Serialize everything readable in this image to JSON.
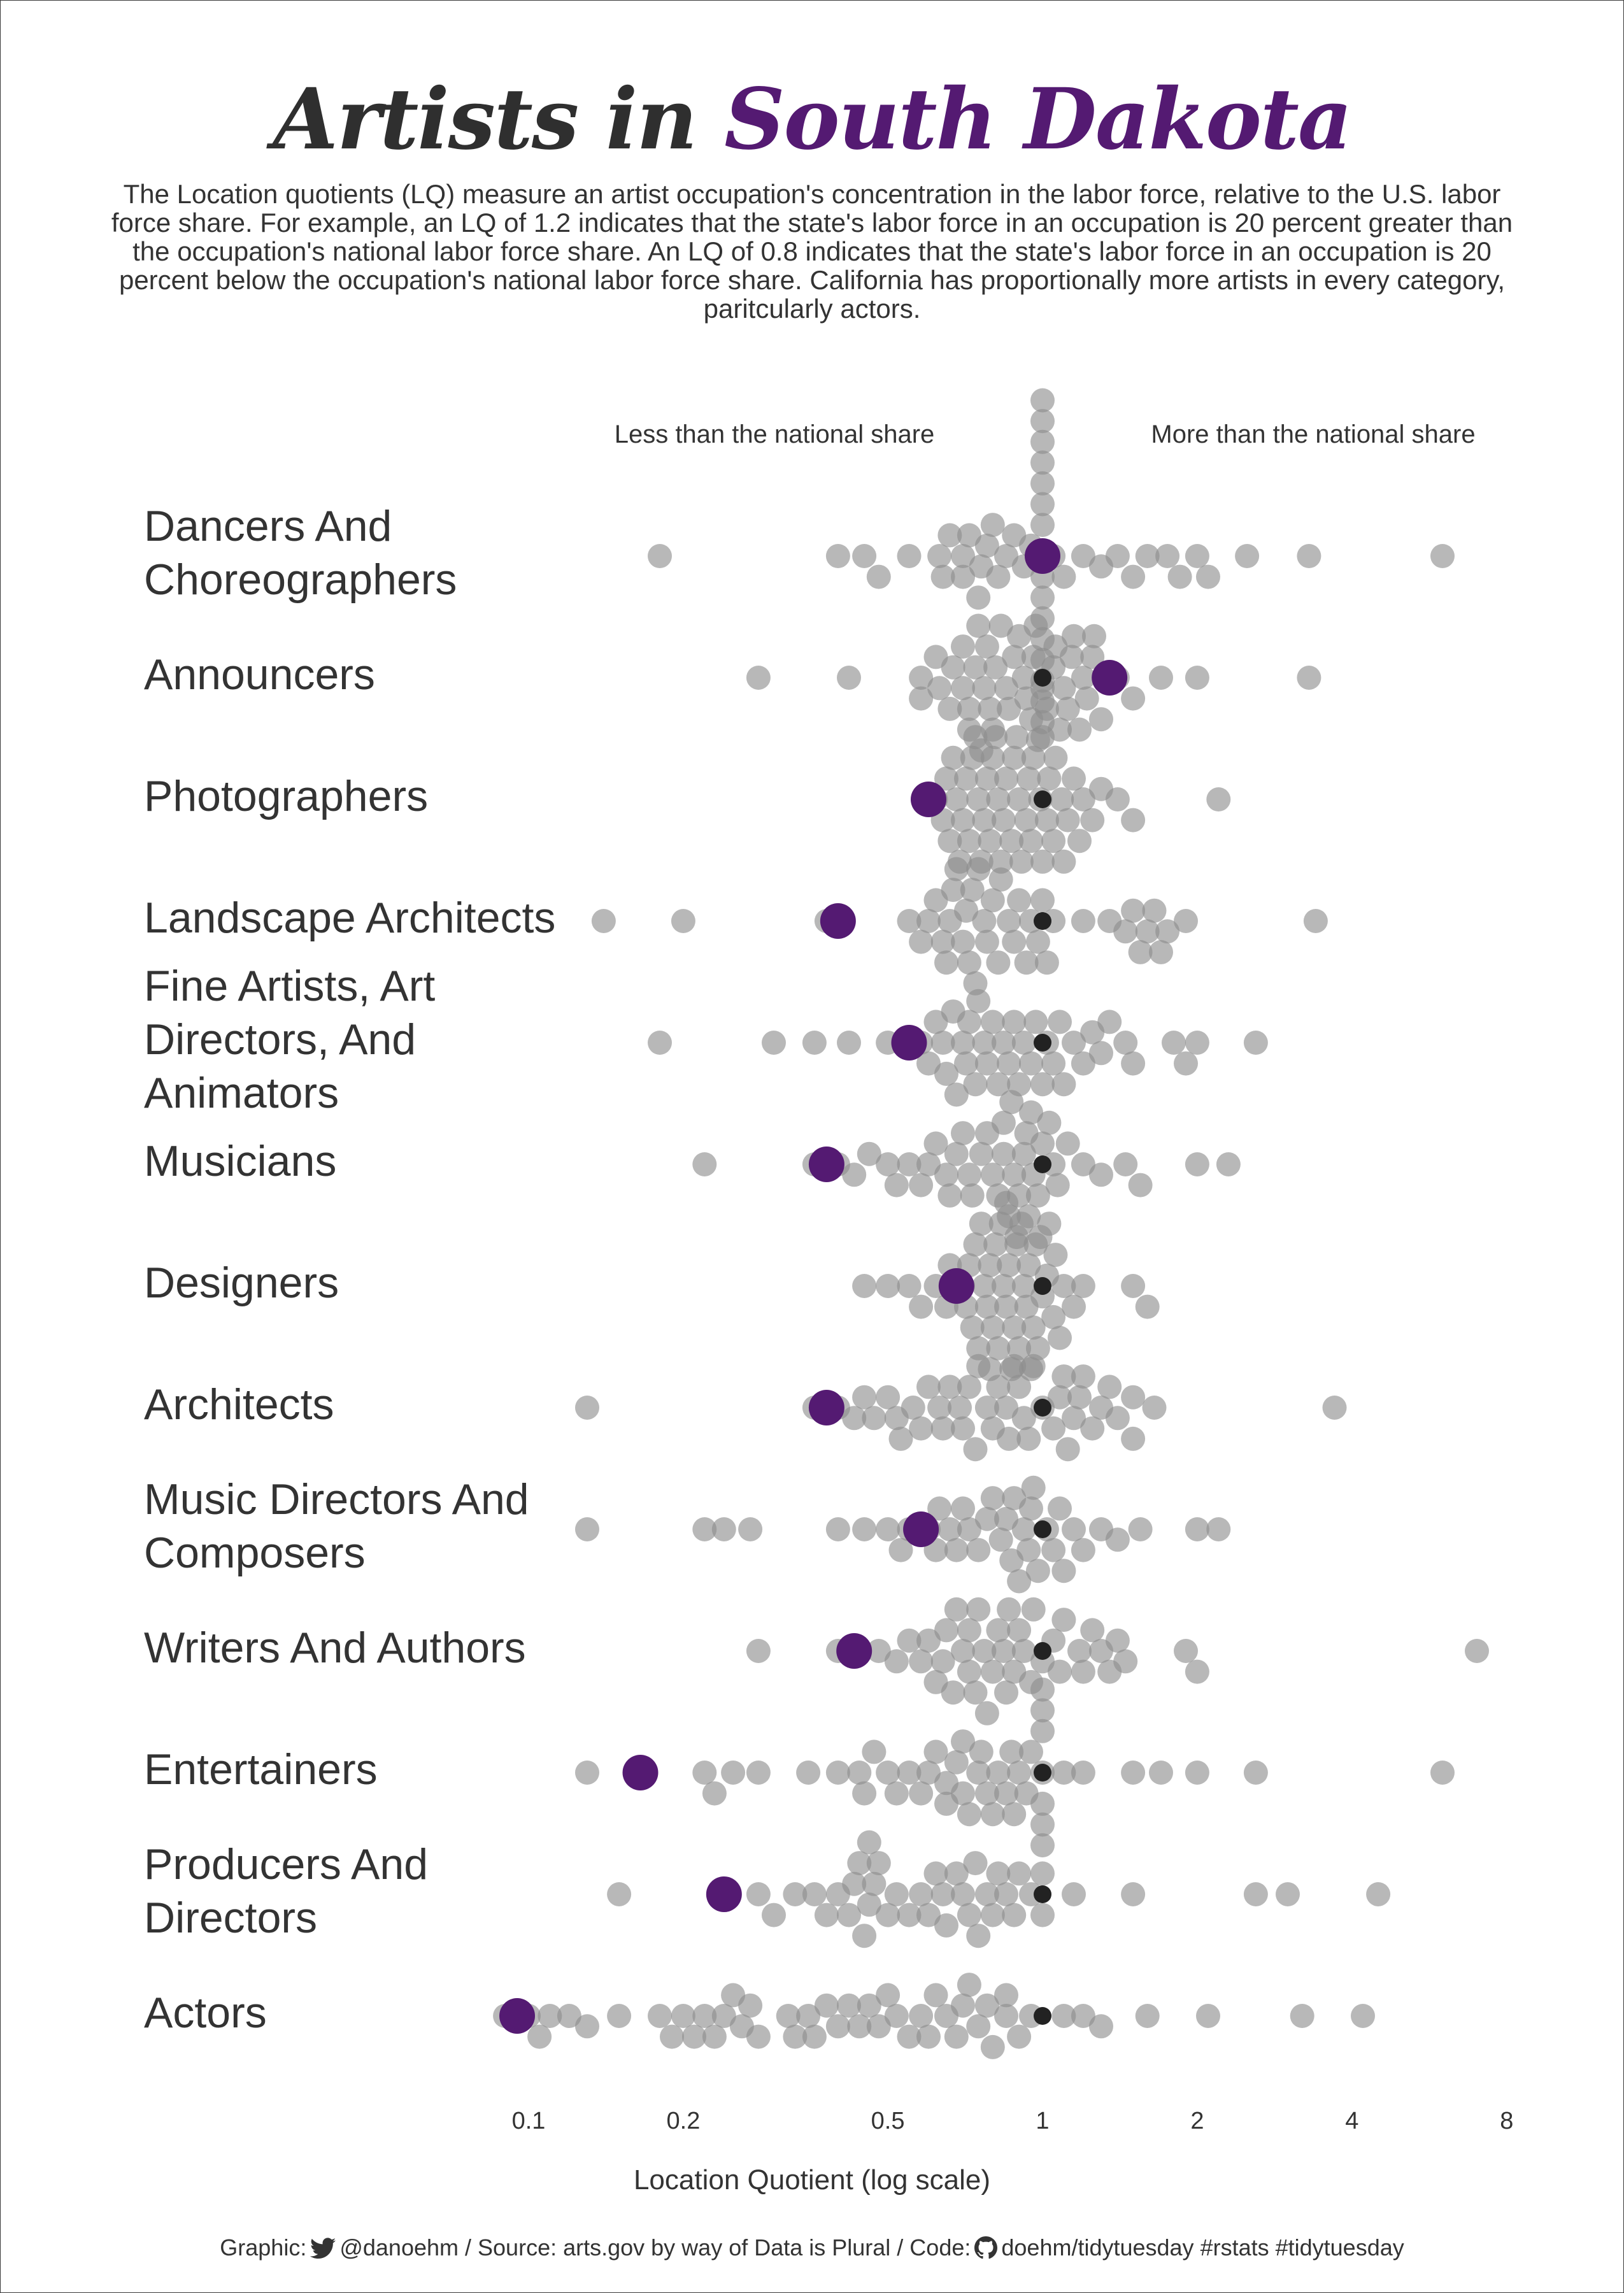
{
  "title": {
    "part1": "Artists in",
    "part2": "South Dakota"
  },
  "subtitle": "The Location quotients (LQ) measure an artist occupation's concentration in the labor force, relative to the U.S. labor force share. For example, an LQ of 1.2 indicates that the state's labor force in an occupation is 20 percent greater than the occupation's national labor force share. An LQ of 0.8 indicates that the state's labor force in an occupation is 20 percent below the occupation's national labor force share. California has proportionally more artists in every category, paritcularly actors.",
  "direction_labels": {
    "less": "Less than the national share",
    "more": "More than the national share"
  },
  "caption": {
    "graphic": "Graphic:",
    "handle": "@danoehm",
    "source": "/ Source: arts.gov by way of Data is Plural / Code:",
    "repo": "doehm/tidytuesday #rstats #tidytuesday"
  },
  "colors": {
    "highlight": "#541a72",
    "other_states": "#8c8c8c",
    "national": "#222222",
    "text": "#333333"
  },
  "icons": [
    "twitter-bird-icon",
    "github-octocat-icon"
  ],
  "chart_data": {
    "type": "scatter",
    "subtype": "beeswarm",
    "xlabel": "Location Quotient (log scale)",
    "x_scale": "log",
    "x_ticks": [
      0.1,
      0.2,
      0.5,
      1,
      2,
      4,
      8
    ],
    "highlight_state": "South Dakota",
    "reference_value": 1,
    "categories": [
      {
        "name": "Dancers And Choreographers",
        "highlight": 1.0,
        "others": [
          0.18,
          0.4,
          0.45,
          0.48,
          0.55,
          0.63,
          0.66,
          0.7,
          0.72,
          0.75,
          0.78,
          0.82,
          0.85,
          0.92,
          1.05,
          1.1,
          1.2,
          1.3,
          1.4,
          1.5,
          1.6,
          1.75,
          1.85,
          2.0,
          2.1,
          2.5,
          3.3,
          6.0,
          1.0,
          1.0,
          1.0,
          1.0,
          1.0,
          1.0,
          1.0,
          1.0,
          1.0,
          1.0,
          1.0,
          1.0,
          1.0,
          1.0,
          1.0,
          0.64,
          0.7,
          0.76,
          0.8,
          0.88,
          0.95
        ]
      },
      {
        "name": "Announcers",
        "highlight": 1.35,
        "others": [
          0.28,
          0.42,
          0.58,
          0.63,
          0.67,
          0.7,
          0.72,
          0.75,
          0.78,
          0.8,
          0.85,
          0.9,
          0.93,
          0.95,
          0.97,
          1.05,
          1.08,
          1.12,
          1.15,
          1.2,
          1.25,
          1.3,
          1.4,
          1.5,
          1.7,
          2.0,
          3.3,
          0.58,
          0.62,
          0.66,
          0.7,
          0.72,
          0.74,
          0.77,
          0.81,
          0.83,
          0.88,
          0.92,
          0.96,
          1.02,
          1.06,
          1.1,
          1.14,
          1.18,
          1.22,
          1.26,
          0.76,
          0.79,
          0.86,
          0.98,
          1.0
        ]
      },
      {
        "name": "Photographers",
        "highlight": 0.6,
        "others": [
          0.62,
          0.64,
          0.66,
          0.68,
          0.7,
          0.72,
          0.74,
          0.76,
          0.78,
          0.8,
          0.82,
          0.85,
          0.88,
          0.9,
          0.93,
          0.96,
          1.0,
          1.03,
          1.06,
          1.09,
          1.12,
          1.15,
          1.2,
          1.25,
          1.3,
          1.4,
          1.5,
          2.2,
          0.65,
          0.69,
          0.73,
          0.77,
          0.81,
          0.84,
          0.87,
          0.91,
          0.95,
          0.99,
          1.02,
          1.05,
          1.1,
          1.18,
          0.67,
          0.71,
          0.75,
          0.79,
          0.83,
          0.89,
          0.94,
          1.0
        ]
      },
      {
        "name": "Landscape Architects",
        "highlight": 0.4,
        "others": [
          0.14,
          0.2,
          0.38,
          0.55,
          0.58,
          0.62,
          0.65,
          0.68,
          0.7,
          0.72,
          0.75,
          0.78,
          0.8,
          0.83,
          0.86,
          0.9,
          0.95,
          1.0,
          1.05,
          1.2,
          1.35,
          1.45,
          1.55,
          1.65,
          1.75,
          1.9,
          3.4,
          0.6,
          0.64,
          0.67,
          0.71,
          0.74,
          0.77,
          0.82,
          0.88,
          0.93,
          0.98,
          1.02,
          0.66,
          0.73,
          1.5,
          1.6,
          1.7
        ]
      },
      {
        "name": "Fine Artists, Art Directors, And Animators",
        "highlight": 0.55,
        "others": [
          0.18,
          0.3,
          0.36,
          0.42,
          0.5,
          0.58,
          0.62,
          0.65,
          0.68,
          0.7,
          0.72,
          0.75,
          0.78,
          0.82,
          0.86,
          0.9,
          0.95,
          1.0,
          1.05,
          1.1,
          1.15,
          1.25,
          1.35,
          1.5,
          1.8,
          2.0,
          2.6,
          0.6,
          0.64,
          0.67,
          0.71,
          0.74,
          0.77,
          0.8,
          0.84,
          0.88,
          0.92,
          0.97,
          1.02,
          1.08,
          1.2,
          1.3,
          1.45,
          1.9
        ]
      },
      {
        "name": "Musicians",
        "highlight": 0.38,
        "others": [
          0.22,
          0.36,
          0.4,
          0.43,
          0.46,
          0.5,
          0.55,
          0.58,
          0.62,
          0.65,
          0.68,
          0.7,
          0.73,
          0.76,
          0.8,
          0.84,
          0.87,
          0.9,
          0.93,
          0.96,
          1.03,
          1.07,
          1.12,
          1.2,
          1.3,
          1.45,
          1.55,
          2.0,
          2.3,
          0.52,
          0.6,
          0.66,
          0.72,
          0.78,
          0.82,
          0.86,
          0.89,
          0.92,
          0.95,
          0.98,
          1.0,
          1.05,
          0.84,
          0.88,
          0.94,
          0.99
        ]
      },
      {
        "name": "Designers",
        "highlight": 0.68,
        "others": [
          0.45,
          0.5,
          0.55,
          0.58,
          0.62,
          0.65,
          0.7,
          0.72,
          0.75,
          0.78,
          0.8,
          0.82,
          0.85,
          0.88,
          0.9,
          0.93,
          0.96,
          1.0,
          1.03,
          1.06,
          1.1,
          1.15,
          1.2,
          1.5,
          1.6,
          0.66,
          0.74,
          0.77,
          0.79,
          0.83,
          0.86,
          0.89,
          0.92,
          0.95,
          0.98,
          1.02,
          1.05,
          1.08,
          0.71,
          0.76,
          0.81,
          0.84,
          0.87,
          0.91,
          0.94,
          0.97,
          0.73,
          0.79,
          0.85
        ]
      },
      {
        "name": "Architects",
        "highlight": 0.38,
        "others": [
          0.13,
          0.36,
          0.4,
          0.43,
          0.47,
          0.5,
          0.53,
          0.56,
          0.6,
          0.63,
          0.66,
          0.69,
          0.72,
          0.75,
          0.78,
          0.82,
          0.85,
          0.88,
          0.92,
          0.96,
          1.05,
          1.1,
          1.15,
          1.2,
          1.3,
          1.4,
          1.5,
          1.65,
          3.7,
          0.45,
          0.52,
          0.58,
          0.64,
          0.7,
          0.8,
          0.86,
          0.94,
          1.0,
          1.08,
          1.18,
          1.25,
          1.35,
          1.5,
          0.74,
          0.9,
          1.12
        ]
      },
      {
        "name": "Music Directors And Composers",
        "highlight": 0.58,
        "others": [
          0.13,
          0.22,
          0.24,
          0.27,
          0.4,
          0.45,
          0.5,
          0.53,
          0.6,
          0.63,
          0.66,
          0.7,
          0.75,
          0.8,
          0.85,
          0.88,
          0.92,
          0.96,
          1.05,
          1.1,
          1.2,
          1.3,
          1.4,
          1.55,
          2.0,
          2.2,
          0.55,
          0.62,
          0.68,
          0.72,
          0.78,
          0.83,
          0.87,
          0.9,
          0.94,
          0.98,
          1.02,
          1.08,
          1.15,
          0.95
        ]
      },
      {
        "name": "Writers And Authors",
        "highlight": 0.43,
        "others": [
          0.28,
          0.4,
          0.48,
          0.52,
          0.58,
          0.62,
          0.65,
          0.68,
          0.72,
          0.75,
          0.78,
          0.82,
          0.85,
          0.88,
          0.92,
          0.96,
          1.05,
          1.1,
          1.18,
          1.25,
          1.35,
          1.45,
          1.9,
          2.0,
          7.0,
          0.55,
          0.6,
          0.64,
          0.67,
          0.7,
          0.74,
          0.77,
          0.8,
          0.84,
          0.9,
          0.95,
          1.0,
          1.08,
          1.2,
          1.3,
          1.4,
          0.72,
          0.86
        ]
      },
      {
        "name": "Entertainers",
        "highlight": 0.165,
        "others": [
          0.13,
          0.22,
          0.25,
          0.28,
          0.35,
          0.4,
          0.44,
          0.47,
          0.5,
          0.55,
          0.6,
          0.65,
          0.7,
          0.75,
          0.8,
          0.85,
          0.9,
          0.95,
          1.1,
          1.2,
          1.5,
          1.7,
          2.0,
          2.6,
          6.0,
          0.45,
          0.52,
          0.58,
          0.62,
          0.68,
          0.72,
          0.78,
          0.82,
          0.88,
          0.93,
          1.0,
          1.0,
          1.0,
          1.0,
          1.0,
          1.0,
          1.0,
          0.65,
          0.7,
          0.76,
          0.87,
          0.23
        ]
      },
      {
        "name": "Producers And Directors",
        "highlight": 0.24,
        "others": [
          0.15,
          0.28,
          0.3,
          0.33,
          0.36,
          0.4,
          0.43,
          0.46,
          0.5,
          0.55,
          0.6,
          0.65,
          0.7,
          0.75,
          0.8,
          0.85,
          0.9,
          0.95,
          1.0,
          1.15,
          1.5,
          2.6,
          3.0,
          4.5,
          0.38,
          0.42,
          0.44,
          0.48,
          0.52,
          0.58,
          0.62,
          0.68,
          0.72,
          0.78,
          0.82,
          0.88,
          0.45,
          0.46,
          0.47,
          0.64,
          0.74,
          1.0
        ]
      },
      {
        "name": "Actors",
        "highlight": 0.095,
        "others": [
          0.09,
          0.1,
          0.11,
          0.12,
          0.13,
          0.15,
          0.18,
          0.2,
          0.22,
          0.24,
          0.26,
          0.28,
          0.32,
          0.35,
          0.38,
          0.42,
          0.46,
          0.5,
          0.55,
          0.6,
          0.65,
          0.7,
          0.75,
          0.8,
          0.85,
          0.9,
          0.95,
          1.1,
          1.2,
          1.3,
          1.6,
          2.1,
          3.2,
          4.2,
          0.19,
          0.21,
          0.23,
          0.25,
          0.27,
          0.33,
          0.36,
          0.4,
          0.44,
          0.48,
          0.52,
          0.58,
          0.62,
          0.68,
          0.72,
          0.78,
          0.85,
          0.105
        ]
      }
    ]
  }
}
